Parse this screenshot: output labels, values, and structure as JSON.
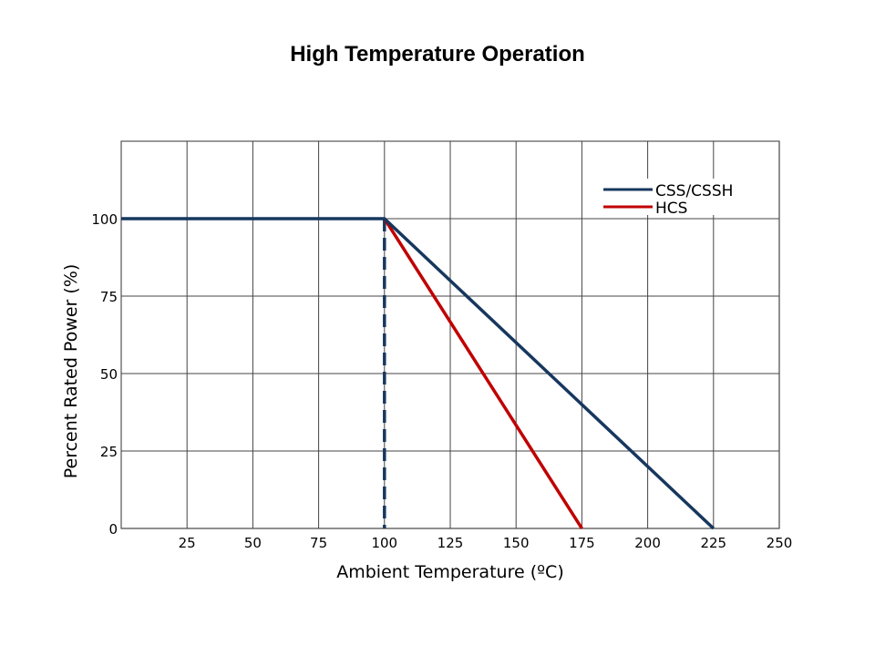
{
  "chart_data": {
    "type": "line",
    "title": "High Temperature Operation",
    "xlabel": "Ambient Temperature (ºC)",
    "ylabel": "Percent Rated Power (%)",
    "xlim": [
      0,
      250
    ],
    "ylim": [
      0,
      125
    ],
    "xticks": [
      25,
      50,
      75,
      100,
      125,
      150,
      175,
      200,
      225,
      250
    ],
    "yticks": [
      0,
      25,
      50,
      75,
      100
    ],
    "grid": true,
    "legend_position": "top-right",
    "series": [
      {
        "name": "CSS/CSSH",
        "color": "#17375e",
        "x": [
          0,
          100,
          225
        ],
        "y": [
          100,
          100,
          0
        ]
      },
      {
        "name": "HCS",
        "color": "#c00000",
        "x": [
          100,
          175
        ],
        "y": [
          100,
          0
        ]
      }
    ],
    "reference_line": {
      "x": 100,
      "style": "dashed",
      "color": "#17375e"
    }
  }
}
